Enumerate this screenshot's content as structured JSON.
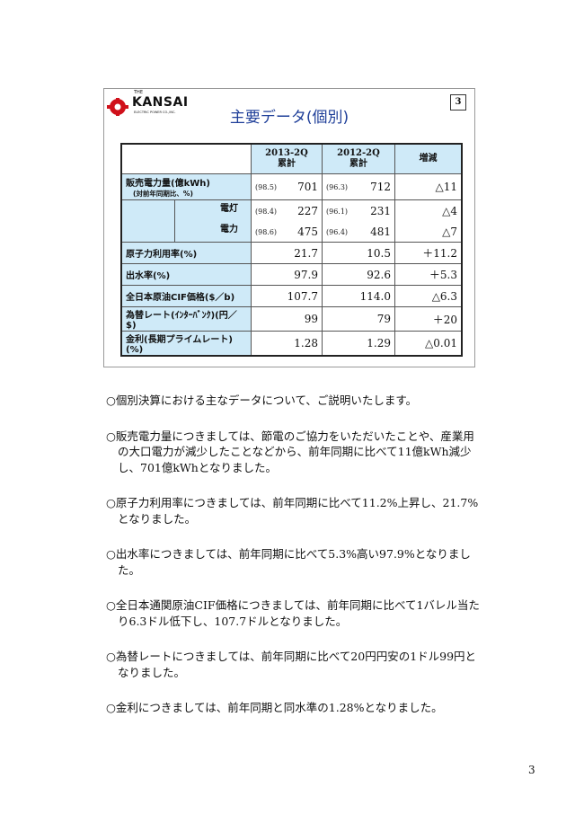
{
  "slide": {
    "logo": {
      "the": "THE",
      "name": "KANSAI",
      "sub": "ELECTRIC POWER CO.,INC."
    },
    "number": "3",
    "title": "主要データ(個別)",
    "table": {
      "headers": [
        "",
        "2013-2Q\n累計",
        "2012-2Q\n累計",
        "増減"
      ],
      "rows": [
        {
          "label": "販売電力量(億kWh)",
          "sublabel": "(対前年同期比、%)",
          "p1": "(98.5)",
          "v1": "701",
          "p2": "(96.3)",
          "v2": "712",
          "diff": "△11"
        },
        {
          "label": "電灯",
          "p1": "(98.4)",
          "v1": "227",
          "p2": "(96.1)",
          "v2": "231",
          "diff": "△4"
        },
        {
          "label": "電力",
          "p1": "(98.6)",
          "v1": "475",
          "p2": "(96.4)",
          "v2": "481",
          "diff": "△7"
        },
        {
          "label": "原子力利用率(%)",
          "v1": "21.7",
          "v2": "10.5",
          "diff": "＋11.2"
        },
        {
          "label": "出水率(%)",
          "v1": "97.9",
          "v2": "92.6",
          "diff": "＋5.3"
        },
        {
          "label": "全日本原油CIF価格($／b)",
          "v1": "107.7",
          "v2": "114.0",
          "diff": "△6.3"
        },
        {
          "label": "為替レート(ｲﾝﾀｰﾊﾞﾝｸ)(円／$)",
          "v1": "99",
          "v2": "79",
          "diff": "＋20"
        },
        {
          "label": "金利(長期プライムレート)(%)",
          "v1": "1.28",
          "v2": "1.29",
          "diff": "△0.01"
        }
      ]
    }
  },
  "body": [
    "○個別決算における主なデータについて、ご説明いたします。",
    "○販売電力量につきましては、節電のご協力をいただいたことや、産業用の大口電力が減少したことなどから、前年同期に比べて11億kWh減少し、701億kWhとなりました。",
    "○原子力利用率につきましては、前年同期に比べて11.2%上昇し、21.7%となりました。",
    "○出水率につきましては、前年同期に比べて5.3%高い97.9%となりました。",
    "○全日本通関原油CIF価格につきましては、前年同期に比べて1バレル当たり6.3ドル低下し、107.7ドルとなりました。",
    "○為替レートにつきましては、前年同期に比べて20円円安の1ドル99円となりました。",
    "○金利につきましては、前年同期と同水準の1.28%となりました。"
  ],
  "page_number": "3",
  "colors": {
    "header_bg": "#cfeaf8",
    "title": "#1f3f99",
    "logo_red": "#d0101a"
  }
}
